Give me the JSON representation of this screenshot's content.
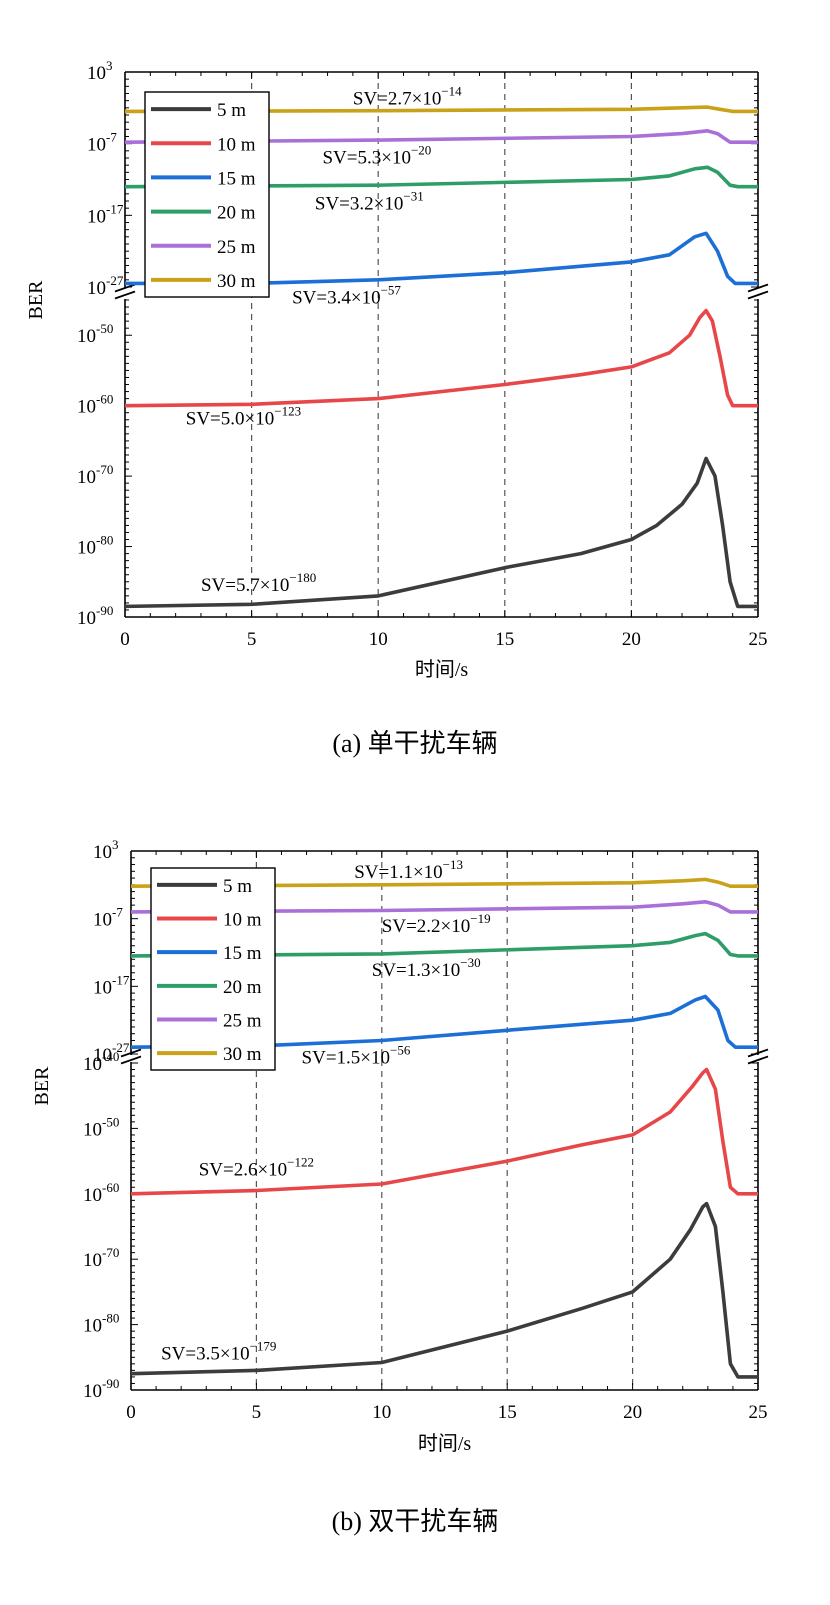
{
  "chart_data": [
    {
      "type": "line",
      "caption": "(a) 单干扰车辆",
      "xlabel": "时间/s",
      "ylabel": "BER",
      "xlim": [
        0,
        25
      ],
      "xticks": [
        "0",
        "5",
        "10",
        "15",
        "20",
        "25"
      ],
      "axis_break": true,
      "upper_ylim_exp": [
        -27,
        3
      ],
      "lower_ylim_exp": [
        -90,
        -45
      ],
      "upper_yticks": [
        {
          "base": "10",
          "exp": "3",
          "v": 3
        },
        {
          "base": "10",
          "exp": "-7",
          "v": -7
        },
        {
          "base": "10",
          "exp": "-17",
          "v": -17
        },
        {
          "base": "10",
          "exp": "-27",
          "v": -27
        }
      ],
      "lower_yticks": [
        {
          "base": "10",
          "exp": "-50",
          "v": -50
        },
        {
          "base": "10",
          "exp": "-60",
          "v": -60
        },
        {
          "base": "10",
          "exp": "-70",
          "v": -70
        },
        {
          "base": "10",
          "exp": "-80",
          "v": -80
        },
        {
          "base": "10",
          "exp": "-90",
          "v": -90
        }
      ],
      "legend": {
        "position": "top-left",
        "entries": [
          "5 m",
          "10 m",
          "15 m",
          "20 m",
          "25 m",
          "30 m"
        ]
      },
      "series": [
        {
          "name": "5 m",
          "color": "#3c3c3c",
          "panel": "lower",
          "points": [
            [
              0,
              -88.5
            ],
            [
              5,
              -88.2
            ],
            [
              10,
              -87
            ],
            [
              15,
              -83
            ],
            [
              18,
              -81
            ],
            [
              20,
              -79
            ],
            [
              21,
              -77
            ],
            [
              22,
              -74
            ],
            [
              22.6,
              -71
            ],
            [
              22.95,
              -67.5
            ],
            [
              23.3,
              -70
            ],
            [
              23.6,
              -77
            ],
            [
              23.9,
              -85
            ],
            [
              24.2,
              -88.5
            ],
            [
              25,
              -88.5
            ]
          ]
        },
        {
          "name": "10 m",
          "color": "#e8474a",
          "panel": "lower",
          "points": [
            [
              0,
              -60
            ],
            [
              5,
              -59.8
            ],
            [
              10,
              -59
            ],
            [
              15,
              -57
            ],
            [
              18,
              -55.6
            ],
            [
              20,
              -54.5
            ],
            [
              21.5,
              -52.5
            ],
            [
              22.3,
              -50
            ],
            [
              22.7,
              -47.5
            ],
            [
              22.95,
              -46.5
            ],
            [
              23.2,
              -48
            ],
            [
              23.5,
              -53
            ],
            [
              23.8,
              -58.5
            ],
            [
              24,
              -60
            ],
            [
              25,
              -60
            ]
          ]
        },
        {
          "name": "15 m",
          "color": "#1c6fd6",
          "panel": "upper",
          "points": [
            [
              0,
              -26.5
            ],
            [
              5,
              -26.5
            ],
            [
              10,
              -26
            ],
            [
              15,
              -25
            ],
            [
              20,
              -23.5
            ],
            [
              21.5,
              -22.5
            ],
            [
              22.5,
              -20
            ],
            [
              22.95,
              -19.5
            ],
            [
              23.4,
              -22
            ],
            [
              23.8,
              -25.5
            ],
            [
              24.1,
              -26.5
            ],
            [
              25,
              -26.5
            ]
          ]
        },
        {
          "name": "20 m",
          "color": "#2e9d68",
          "panel": "upper",
          "points": [
            [
              0,
              -13
            ],
            [
              10,
              -12.8
            ],
            [
              20,
              -12
            ],
            [
              21.5,
              -11.5
            ],
            [
              22.5,
              -10.5
            ],
            [
              23,
              -10.3
            ],
            [
              23.4,
              -11
            ],
            [
              23.9,
              -12.8
            ],
            [
              24.2,
              -13
            ],
            [
              25,
              -13
            ]
          ]
        },
        {
          "name": "25 m",
          "color": "#a970d8",
          "panel": "upper",
          "points": [
            [
              0,
              -6.8
            ],
            [
              10,
              -6.5
            ],
            [
              20,
              -6
            ],
            [
              22,
              -5.6
            ],
            [
              23,
              -5.2
            ],
            [
              23.4,
              -5.6
            ],
            [
              23.9,
              -6.8
            ],
            [
              25,
              -6.8
            ]
          ]
        },
        {
          "name": "30 m",
          "color": "#c9a21a",
          "panel": "upper",
          "points": [
            [
              0,
              -2.5
            ],
            [
              10,
              -2.4
            ],
            [
              20,
              -2.2
            ],
            [
              22,
              -2
            ],
            [
              23,
              -1.9
            ],
            [
              23.5,
              -2.2
            ],
            [
              24,
              -2.5
            ],
            [
              25,
              -2.5
            ]
          ]
        }
      ],
      "annotations": [
        {
          "text": "SV=2.7×10",
          "exp": "−14",
          "x": 9,
          "y": -1.5,
          "panel": "upper"
        },
        {
          "text": "SV=5.3×10",
          "exp": "−20",
          "x": 7.8,
          "y": -9.8,
          "panel": "upper"
        },
        {
          "text": "SV=3.2×10",
          "exp": "−31",
          "x": 7.5,
          "y": -16.2,
          "panel": "upper"
        },
        {
          "text": "SV=3.4×10",
          "exp": "−57",
          "x": 6.6,
          "y": -29.3,
          "panel": "upper"
        },
        {
          "text": "SV=5.0×10",
          "exp": "−123",
          "x": 2.4,
          "y": -62.7,
          "panel": "lower"
        },
        {
          "text": "SV=5.7×10",
          "exp": "−180",
          "x": 3,
          "y": -86.3,
          "panel": "lower"
        }
      ]
    },
    {
      "type": "line",
      "caption": "(b) 双干扰车辆",
      "xlabel": "时间/s",
      "ylabel": "BER",
      "xlim": [
        0,
        25
      ],
      "xticks": [
        "0",
        "5",
        "10",
        "15",
        "20",
        "25"
      ],
      "axis_break": true,
      "upper_ylim_exp": [
        -27,
        3
      ],
      "lower_ylim_exp": [
        -90,
        -40
      ],
      "upper_yticks": [
        {
          "base": "10",
          "exp": "3",
          "v": 3
        },
        {
          "base": "10",
          "exp": "-7",
          "v": -7
        },
        {
          "base": "10",
          "exp": "-17",
          "v": -17
        },
        {
          "base": "10",
          "exp": "-27",
          "v": -27
        }
      ],
      "lower_yticks": [
        {
          "base": "10",
          "exp": "-40",
          "v": -40
        },
        {
          "base": "10",
          "exp": "-50",
          "v": -50
        },
        {
          "base": "10",
          "exp": "-60",
          "v": -60
        },
        {
          "base": "10",
          "exp": "-70",
          "v": -70
        },
        {
          "base": "10",
          "exp": "-80",
          "v": -80
        },
        {
          "base": "10",
          "exp": "-90",
          "v": -90
        }
      ],
      "legend": {
        "position": "top-left",
        "entries": [
          "5 m",
          "10 m",
          "15 m",
          "20 m",
          "25 m",
          "30 m"
        ]
      },
      "series": [
        {
          "name": "5 m",
          "color": "#3c3c3c",
          "panel": "lower",
          "points": [
            [
              0,
              -87.5
            ],
            [
              5,
              -87
            ],
            [
              10,
              -85.8
            ],
            [
              15,
              -81
            ],
            [
              18,
              -77.5
            ],
            [
              20,
              -75
            ],
            [
              21.5,
              -70
            ],
            [
              22.3,
              -65.5
            ],
            [
              22.8,
              -62
            ],
            [
              22.95,
              -61.5
            ],
            [
              23.3,
              -65
            ],
            [
              23.6,
              -75
            ],
            [
              23.9,
              -86
            ],
            [
              24.2,
              -88
            ],
            [
              25,
              -88
            ]
          ]
        },
        {
          "name": "10 m",
          "color": "#e8474a",
          "panel": "lower",
          "points": [
            [
              0,
              -60
            ],
            [
              5,
              -59.5
            ],
            [
              10,
              -58.5
            ],
            [
              15,
              -55
            ],
            [
              18,
              -52.5
            ],
            [
              20,
              -51
            ],
            [
              21.5,
              -47.5
            ],
            [
              22.4,
              -43.5
            ],
            [
              22.8,
              -41.5
            ],
            [
              22.95,
              -41
            ],
            [
              23.3,
              -44
            ],
            [
              23.6,
              -52
            ],
            [
              23.9,
              -59
            ],
            [
              24.2,
              -60
            ],
            [
              25,
              -60
            ]
          ]
        },
        {
          "name": "15 m",
          "color": "#1c6fd6",
          "panel": "upper",
          "points": [
            [
              0,
              -26
            ],
            [
              5,
              -25.8
            ],
            [
              10,
              -25
            ],
            [
              15,
              -23.5
            ],
            [
              20,
              -22
            ],
            [
              21.5,
              -21
            ],
            [
              22.5,
              -19
            ],
            [
              22.9,
              -18.5
            ],
            [
              23.4,
              -20.5
            ],
            [
              23.8,
              -25
            ],
            [
              24.1,
              -26
            ],
            [
              25,
              -26
            ]
          ]
        },
        {
          "name": "20 m",
          "color": "#2e9d68",
          "panel": "upper",
          "points": [
            [
              0,
              -12.5
            ],
            [
              10,
              -12.2
            ],
            [
              20,
              -11
            ],
            [
              21.5,
              -10.5
            ],
            [
              22.5,
              -9.5
            ],
            [
              22.9,
              -9.2
            ],
            [
              23.4,
              -10.2
            ],
            [
              23.9,
              -12.3
            ],
            [
              24.2,
              -12.5
            ],
            [
              25,
              -12.5
            ]
          ]
        },
        {
          "name": "25 m",
          "color": "#a970d8",
          "panel": "upper",
          "points": [
            [
              0,
              -6
            ],
            [
              10,
              -5.8
            ],
            [
              20,
              -5.3
            ],
            [
              22,
              -4.8
            ],
            [
              22.9,
              -4.5
            ],
            [
              23.4,
              -5
            ],
            [
              23.9,
              -6
            ],
            [
              25,
              -6
            ]
          ]
        },
        {
          "name": "30 m",
          "color": "#c9a21a",
          "panel": "upper",
          "points": [
            [
              0,
              -2.2
            ],
            [
              10,
              -2
            ],
            [
              20,
              -1.7
            ],
            [
              22,
              -1.4
            ],
            [
              22.9,
              -1.2
            ],
            [
              23.4,
              -1.6
            ],
            [
              23.9,
              -2.2
            ],
            [
              25,
              -2.2
            ]
          ]
        }
      ],
      "annotations": [
        {
          "text": "SV=1.1×10",
          "exp": "−13",
          "x": 8.9,
          "y": -1,
          "panel": "upper"
        },
        {
          "text": "SV=2.2×10",
          "exp": "−19",
          "x": 10,
          "y": -9,
          "panel": "upper"
        },
        {
          "text": "SV=1.3×10",
          "exp": "−30",
          "x": 9.6,
          "y": -15.5,
          "panel": "upper"
        },
        {
          "text": "SV=1.5×10",
          "exp": "−56",
          "x": 6.8,
          "y": -28.4,
          "panel": "upper"
        },
        {
          "text": "SV=2.6×10",
          "exp": "−122",
          "x": 2.7,
          "y": -57.2,
          "panel": "lower"
        },
        {
          "text": "SV=3.5×10",
          "exp": "−179",
          "x": 1.2,
          "y": -85.3,
          "panel": "lower"
        }
      ]
    }
  ]
}
